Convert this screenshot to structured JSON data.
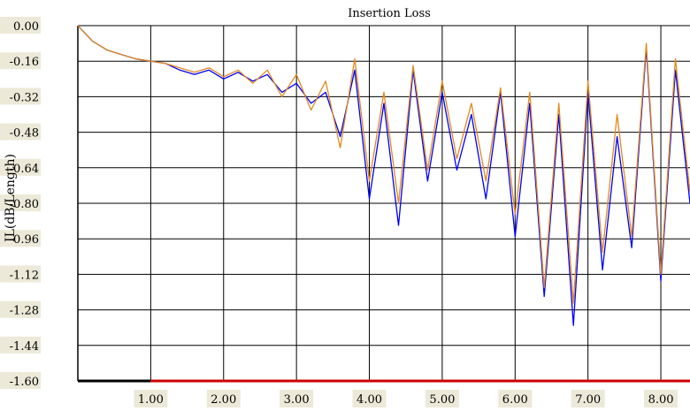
{
  "chart_data": {
    "type": "line",
    "title": "Insertion Loss",
    "xlabel": "",
    "ylabel": "IL(dB/Length)",
    "xlim": [
      0.0,
      8.4
    ],
    "ylim": [
      -1.6,
      0.0
    ],
    "x_ticks": [
      "1.00",
      "2.00",
      "3.00",
      "4.00",
      "5.00",
      "6.00",
      "7.00",
      "8.00"
    ],
    "y_ticks": [
      "0.00",
      "-0.16",
      "-0.32",
      "-0.48",
      "-0.64",
      "-0.80",
      "-0.96",
      "-1.12",
      "-1.28",
      "-1.44",
      "-1.60"
    ],
    "grid": true,
    "colors": {
      "series_1": "#0000ff",
      "series_2": "#e08a1e",
      "baseline": "#cc0000",
      "label_bg": "#ece9d8"
    },
    "series": [
      {
        "x": [
          0.0,
          0.2,
          0.4,
          0.6,
          0.8,
          1.0,
          1.2,
          1.4,
          1.6,
          1.8,
          2.0,
          2.2,
          2.4,
          2.6,
          2.8,
          3.0,
          3.2,
          3.4,
          3.6,
          3.8,
          4.0,
          4.2,
          4.4,
          4.6,
          4.8,
          5.0,
          5.2,
          5.4,
          5.6,
          5.8,
          6.0,
          6.2,
          6.4,
          6.6,
          6.8,
          7.0,
          7.2,
          7.4,
          7.6,
          7.8,
          8.0,
          8.2,
          8.4
        ],
        "values": [
          0.0,
          -0.07,
          -0.11,
          -0.13,
          -0.15,
          -0.16,
          -0.17,
          -0.2,
          -0.22,
          -0.2,
          -0.24,
          -0.21,
          -0.25,
          -0.22,
          -0.3,
          -0.26,
          -0.35,
          -0.3,
          -0.5,
          -0.2,
          -0.78,
          -0.35,
          -0.9,
          -0.2,
          -0.7,
          -0.3,
          -0.65,
          -0.4,
          -0.78,
          -0.3,
          -0.95,
          -0.35,
          -1.22,
          -0.4,
          -1.35,
          -0.3,
          -1.1,
          -0.5,
          -1.0,
          -0.1,
          -1.15,
          -0.2,
          -0.8
        ]
      },
      {
        "x": [
          0.0,
          0.2,
          0.4,
          0.6,
          0.8,
          1.0,
          1.2,
          1.4,
          1.6,
          1.8,
          2.0,
          2.2,
          2.4,
          2.6,
          2.8,
          3.0,
          3.2,
          3.4,
          3.6,
          3.8,
          4.0,
          4.2,
          4.4,
          4.6,
          4.8,
          5.0,
          5.2,
          5.4,
          5.6,
          5.8,
          6.0,
          6.2,
          6.4,
          6.6,
          6.8,
          7.0,
          7.2,
          7.4,
          7.6,
          7.8,
          8.0,
          8.2,
          8.4
        ],
        "values": [
          0.0,
          -0.07,
          -0.11,
          -0.13,
          -0.15,
          -0.16,
          -0.17,
          -0.19,
          -0.21,
          -0.19,
          -0.23,
          -0.2,
          -0.26,
          -0.2,
          -0.32,
          -0.22,
          -0.38,
          -0.25,
          -0.55,
          -0.15,
          -0.7,
          -0.3,
          -0.8,
          -0.18,
          -0.65,
          -0.25,
          -0.6,
          -0.35,
          -0.7,
          -0.28,
          -0.85,
          -0.3,
          -1.18,
          -0.35,
          -1.25,
          -0.25,
          -1.02,
          -0.4,
          -0.95,
          -0.08,
          -1.12,
          -0.15,
          -0.75
        ]
      }
    ]
  }
}
